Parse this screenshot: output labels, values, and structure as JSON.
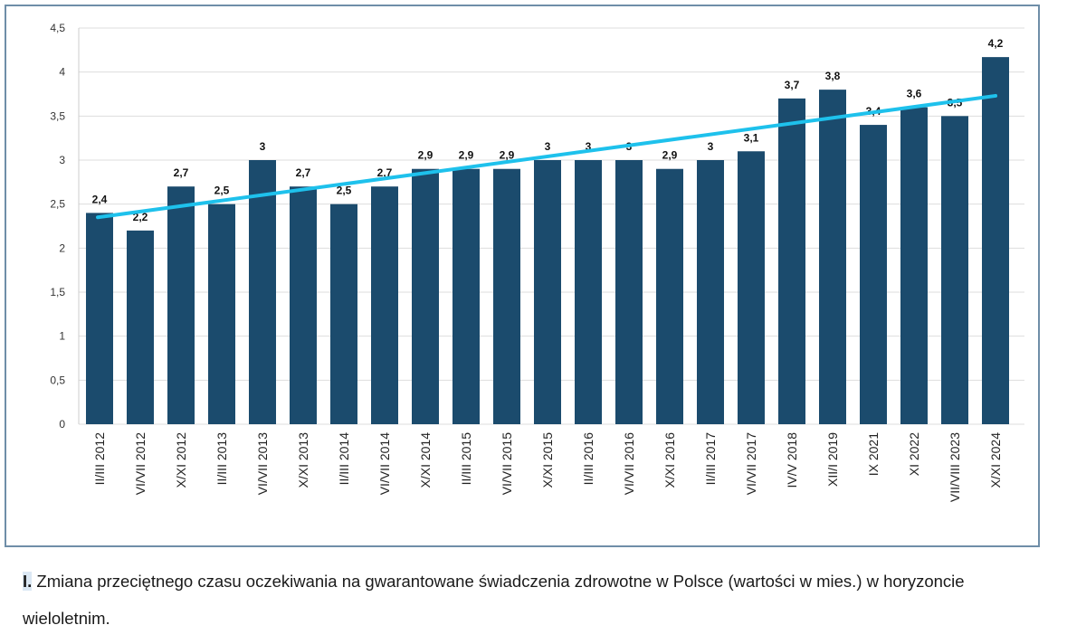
{
  "chart_data": {
    "type": "bar",
    "title": "",
    "xlabel": "",
    "ylabel": "",
    "ylim": [
      0,
      4.5
    ],
    "yticks": [
      "0",
      "0,5",
      "1",
      "1,5",
      "2",
      "2,5",
      "3",
      "3,5",
      "4",
      "4,5"
    ],
    "grid": true,
    "categories": [
      "II/III 2012",
      "VI/VII 2012",
      "X/XI 2012",
      "II/III 2013",
      "VI/VII 2013",
      "X/XI 2013",
      "II/III 2014",
      "VI/VII 2014",
      "X/XI 2014",
      "II/III 2015",
      "VI/VII 2015",
      "X/XI 2015",
      "II/III 2016",
      "VI/VII 2016",
      "X/XI 2016",
      "II/III 2017",
      "VI/VII 2017",
      "IV/V 2018",
      "XII/I 2019",
      "IX 2021",
      "XI 2022",
      "VII/VIII 2023",
      "X/XI 2024"
    ],
    "values": [
      2.4,
      2.2,
      2.7,
      2.5,
      3,
      2.7,
      2.5,
      2.7,
      2.9,
      2.9,
      2.9,
      3,
      3,
      3,
      2.9,
      3,
      3.1,
      3.7,
      3.8,
      3.4,
      3.6,
      3.5,
      4.17
    ],
    "data_labels": [
      "2,4",
      "2,2",
      "2,7",
      "2,5",
      "3",
      "2,7",
      "2,5",
      "2,7",
      "2,9",
      "2,9",
      "2,9",
      "3",
      "3",
      "3",
      "2,9",
      "3",
      "3,1",
      "3,7",
      "3,8",
      "3,4",
      "3,6",
      "3,5",
      "4,2"
    ],
    "trendline": {
      "type": "linear",
      "start": 2.35,
      "end": 3.73
    },
    "colors": {
      "bar": "#1b4b6d",
      "trend": "#1ec1ec",
      "grid": "#dddddd"
    }
  },
  "caption": {
    "number": "I.",
    "text": " Zmiana przeciętnego czasu oczekiwania na gwarantowane świadczenia zdrowotne w Polsce (wartości w mies.) w horyzoncie wieloletnim."
  }
}
